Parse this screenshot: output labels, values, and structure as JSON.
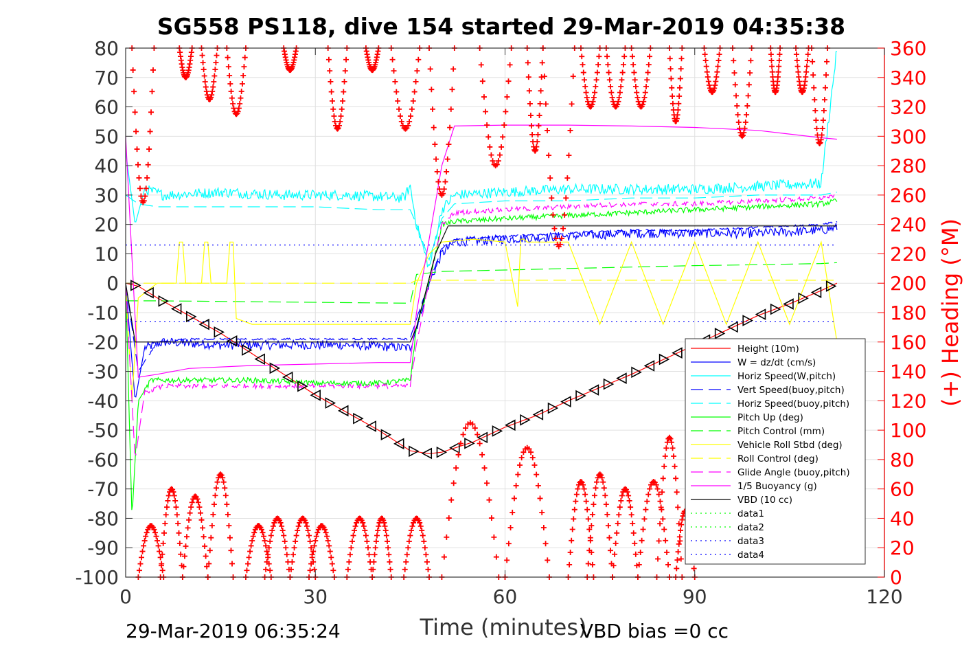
{
  "chart_data": {
    "type": "line",
    "title": "SG558 PS118, dive 154 started 29-Mar-2019 04:35:38",
    "xlabel": "Time (minutes)",
    "ylabel_right": "(+) Heading (°M)",
    "xlim": [
      0,
      120
    ],
    "ylim_left": [
      -100,
      80
    ],
    "ylim_right": [
      0,
      360
    ],
    "xticks": [
      "0",
      "30",
      "60",
      "90",
      "120"
    ],
    "yticks_left": [
      "80",
      "70",
      "60",
      "50",
      "40",
      "30",
      "20",
      "10",
      "0",
      "-10",
      "-20",
      "-30",
      "-40",
      "-50",
      "-60",
      "-70",
      "-80",
      "-90",
      "-100"
    ],
    "yticks_right": [
      "360",
      "340",
      "320",
      "300",
      "280",
      "260",
      "240",
      "220",
      "200",
      "180",
      "160",
      "140",
      "120",
      "100",
      "80",
      "60",
      "40",
      "20",
      "0"
    ],
    "grid": true,
    "legend_position": "lower-right",
    "footer_left": "29-Mar-2019 06:35:24",
    "footer_right": "VBD bias =0 cc",
    "colors": {
      "red": "#ff0000",
      "blue": "#0000ff",
      "cyan": "#00ffff",
      "green": "#00ff00",
      "yellow": "#ffff00",
      "magenta": "#ff00ff",
      "black": "#000000"
    },
    "series": [
      {
        "name": "Height (10m)",
        "color": "#ff0000",
        "style": "solid",
        "x": [
          0,
          2,
          5,
          10,
          15,
          20,
          25,
          30,
          35,
          40,
          45,
          48,
          50,
          55,
          60,
          65,
          70,
          75,
          80,
          85,
          90,
          95,
          100,
          105,
          110,
          112.5
        ],
        "y": [
          0,
          -1,
          -5,
          -11,
          -17,
          -24,
          -31,
          -38,
          -44,
          -50,
          -57,
          -58,
          -57.5,
          -54,
          -49,
          -45,
          -40,
          -35.5,
          -31,
          -26,
          -21,
          -16,
          -11,
          -7,
          -2.5,
          0
        ]
      },
      {
        "name": "W = dz/dt (cm/s)",
        "color": "#0000ff",
        "style": "solid",
        "x": [
          0,
          1.5,
          3,
          6,
          15,
          25,
          35,
          45,
          46,
          48,
          50,
          52,
          60,
          70,
          80,
          90,
          100,
          110,
          112.5
        ],
        "y": [
          0,
          -40,
          -22,
          -20,
          -21,
          -21,
          -21,
          -22,
          -15,
          0,
          10,
          14,
          15,
          16,
          17,
          17,
          17,
          18,
          19
        ]
      },
      {
        "name": "Horiz Speed(W,pitch)",
        "color": "#00ffff",
        "style": "solid",
        "x": [
          0,
          1.5,
          3,
          6,
          15,
          25,
          35,
          44,
          45,
          46,
          48,
          50,
          52,
          60,
          70,
          80,
          90,
          100,
          110,
          112.5
        ],
        "y": [
          45,
          20,
          32,
          30,
          31,
          30,
          30,
          29,
          33,
          20,
          5,
          25,
          30,
          31,
          32,
          32,
          32,
          33,
          34,
          80
        ]
      },
      {
        "name": "Vert Speed(buoy,pitch)",
        "color": "#0000ff",
        "style": "dashed",
        "x": [
          0,
          2,
          5,
          10,
          20,
          30,
          40,
          45,
          46,
          48,
          50,
          52,
          60,
          70,
          80,
          90,
          100,
          110,
          112.5
        ],
        "y": [
          0,
          -30,
          -20,
          -19,
          -19,
          -19,
          -19,
          -19,
          -12,
          0,
          12,
          15,
          16,
          17,
          18,
          18,
          19,
          20,
          21
        ]
      },
      {
        "name": "Horiz Speed(buoy,pitch)",
        "color": "#00ffff",
        "style": "dashed",
        "x": [
          0,
          2,
          5,
          10,
          20,
          30,
          40,
          45,
          46,
          48,
          50,
          52,
          60,
          70,
          80,
          90,
          100,
          110,
          112.5
        ],
        "y": [
          30,
          27,
          26,
          26,
          26,
          26,
          25,
          25,
          20,
          8,
          22,
          27,
          28,
          28,
          29,
          29,
          30,
          30,
          31
        ]
      },
      {
        "name": "Pitch Up (deg)",
        "color": "#00ff00",
        "style": "solid",
        "x": [
          0,
          1,
          2,
          4,
          10,
          20,
          30,
          40,
          45,
          46,
          48,
          50,
          52,
          60,
          70,
          80,
          90,
          100,
          110,
          112.5
        ],
        "y": [
          0,
          -80,
          -40,
          -33,
          -33,
          -33,
          -34,
          -34,
          -33,
          -15,
          0,
          20,
          21,
          22,
          23,
          24,
          25,
          26,
          27,
          28
        ]
      },
      {
        "name": "Pitch Control (mm)",
        "color": "#00ff00",
        "style": "dashed",
        "x": [
          0,
          5,
          15,
          25,
          35,
          45,
          46,
          50,
          60,
          70,
          80,
          90,
          100,
          110,
          112.5
        ],
        "y": [
          -6,
          -6,
          -6.2,
          -6.4,
          -6.6,
          -6.8,
          3,
          4,
          4.5,
          5,
          5.5,
          6,
          6.3,
          6.7,
          7
        ]
      },
      {
        "name": "Vehicle Roll Stbd (deg)",
        "color": "#ffff00",
        "style": "solid",
        "x": [
          0,
          1,
          2,
          5,
          8,
          8.5,
          9,
          9.5,
          12,
          12.5,
          13,
          13.5,
          16,
          16.5,
          17,
          17.5,
          20,
          24,
          28,
          32,
          36,
          40,
          44,
          45,
          46,
          48,
          50,
          55,
          60,
          62,
          62.5,
          63,
          63.5,
          70,
          75,
          80,
          85,
          90,
          95,
          100,
          105,
          110,
          112.5
        ],
        "y": [
          0,
          -40,
          -5,
          0,
          0,
          14,
          14,
          0,
          0,
          14,
          14,
          0,
          0,
          14,
          14,
          -12,
          -14,
          -14,
          -14,
          -14,
          -14,
          -14,
          -14,
          -14,
          0,
          10,
          14,
          15,
          14,
          -8,
          15,
          15,
          14,
          14,
          -14,
          14,
          -14,
          14,
          -14,
          14,
          -14,
          14,
          -20
        ]
      },
      {
        "name": "Roll Control (deg)",
        "color": "#ffff00",
        "style": "dashed",
        "x": [
          0,
          10,
          30,
          45,
          46,
          60,
          90,
          112.5
        ],
        "y": [
          0,
          0,
          0,
          0,
          1,
          1,
          1,
          1
        ]
      },
      {
        "name": "Glide Angle (buoy,pitch)",
        "color": "#ff00ff",
        "style": "dashed",
        "x": [
          0,
          1.5,
          3,
          6,
          15,
          25,
          35,
          45,
          46,
          48,
          50,
          52,
          60,
          70,
          80,
          90,
          100,
          110,
          112.5
        ],
        "y": [
          0,
          -60,
          -37,
          -35,
          -35,
          -35,
          -35,
          -35,
          -20,
          0,
          20,
          24,
          25,
          26,
          27,
          27,
          28,
          29,
          30
        ]
      },
      {
        "name": "1/5 Buoyancy (g)",
        "color": "#ff00ff",
        "style": "solid",
        "x": [
          0,
          1.2,
          2,
          5,
          10,
          20,
          30,
          40,
          45,
          46,
          48,
          50,
          52,
          60,
          70,
          80,
          90,
          100,
          110,
          112.5
        ],
        "y": [
          50,
          0,
          -32,
          -31,
          -29,
          -28,
          -27.5,
          -27,
          -27,
          -10,
          15,
          40,
          53.5,
          53.8,
          53.8,
          53.5,
          53,
          52,
          49.5,
          49
        ]
      },
      {
        "name": "VBD (10 cc)",
        "color": "#000000",
        "style": "solid",
        "x": [
          0,
          1.5,
          3,
          45,
          46,
          49,
          51,
          60,
          90,
          112.5
        ],
        "y": [
          0,
          -20,
          -20,
          -20,
          -15,
          10,
          19.5,
          19.5,
          19.5,
          19.5
        ]
      },
      {
        "name": "data1",
        "color": "#00ff00",
        "style": "dotted",
        "x": [],
        "y": []
      },
      {
        "name": "data2",
        "color": "#00ff00",
        "style": "dotted",
        "x": [],
        "y": []
      },
      {
        "name": "data3",
        "color": "#0000ff",
        "style": "dotted",
        "x": [
          0,
          112.5
        ],
        "y": [
          13,
          13
        ]
      },
      {
        "name": "data4",
        "color": "#0000ff",
        "style": "dotted",
        "x": [
          0,
          112.5
        ],
        "y": [
          -13,
          -13
        ]
      }
    ],
    "heading_series": {
      "name": "(+) Heading",
      "axis": "right",
      "color": "#ff0000",
      "marker": "+",
      "upper_dips": [
        {
          "x0": 1,
          "x1": 4.5,
          "min": 255
        },
        {
          "x0": 8.5,
          "x1": 10.5,
          "min": 340
        },
        {
          "x0": 12,
          "x1": 14.5,
          "min": 325
        },
        {
          "x0": 16,
          "x1": 19,
          "min": 315
        },
        {
          "x0": 25,
          "x1": 27,
          "min": 345
        },
        {
          "x0": 32,
          "x1": 35,
          "min": 305
        },
        {
          "x0": 38,
          "x1": 40,
          "min": 345
        },
        {
          "x0": 42,
          "x1": 46.5,
          "min": 305
        },
        {
          "x0": 48,
          "x1": 52,
          "min": 260
        },
        {
          "x0": 56,
          "x1": 61,
          "min": 280
        },
        {
          "x0": 63.5,
          "x1": 66,
          "min": 290
        },
        {
          "x0": 66,
          "x1": 71,
          "min": 225
        },
        {
          "x0": 72,
          "x1": 75,
          "min": 320
        },
        {
          "x0": 76,
          "x1": 79,
          "min": 320
        },
        {
          "x0": 80,
          "x1": 83,
          "min": 320
        },
        {
          "x0": 86,
          "x1": 88,
          "min": 310
        },
        {
          "x0": 91.5,
          "x1": 94,
          "min": 330
        },
        {
          "x0": 96,
          "x1": 99,
          "min": 300
        },
        {
          "x0": 102,
          "x1": 103.5,
          "min": 330
        },
        {
          "x0": 106,
          "x1": 108,
          "min": 330
        },
        {
          "x0": 108.5,
          "x1": 111,
          "min": 295
        }
      ],
      "lower_bumps": [
        {
          "x0": 2,
          "x1": 6,
          "max": 35
        },
        {
          "x0": 5.5,
          "x1": 9,
          "max": 60
        },
        {
          "x0": 9,
          "x1": 13,
          "max": 55
        },
        {
          "x0": 13,
          "x1": 17,
          "max": 70
        },
        {
          "x0": 19,
          "x1": 23,
          "max": 35
        },
        {
          "x0": 22,
          "x1": 26,
          "max": 40
        },
        {
          "x0": 26,
          "x1": 30,
          "max": 40
        },
        {
          "x0": 29,
          "x1": 33,
          "max": 35
        },
        {
          "x0": 35,
          "x1": 39,
          "max": 40
        },
        {
          "x0": 39,
          "x1": 42,
          "max": 40
        },
        {
          "x0": 44,
          "x1": 48,
          "max": 40
        },
        {
          "x0": 50,
          "x1": 59,
          "max": 105
        },
        {
          "x0": 60,
          "x1": 67,
          "max": 88
        },
        {
          "x0": 70,
          "x1": 74,
          "max": 65
        },
        {
          "x0": 73,
          "x1": 77,
          "max": 70
        },
        {
          "x0": 77,
          "x1": 81,
          "max": 60
        },
        {
          "x0": 81,
          "x1": 86,
          "max": 65
        },
        {
          "x0": 84,
          "x1": 88,
          "max": 95
        },
        {
          "x0": 87,
          "x1": 90,
          "max": 45
        }
      ]
    }
  }
}
